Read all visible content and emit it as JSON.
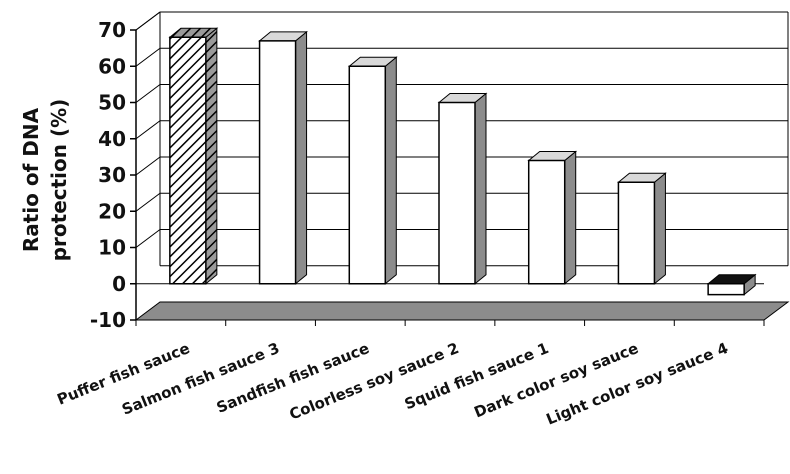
{
  "chart_data": {
    "type": "bar",
    "categories": [
      "Puffer fish sauce",
      "Salmon fish sauce 3",
      "Sandfish fish sauce",
      "Colorless soy sauce 2",
      "Squid fish sauce 1",
      "Dark color soy sauce",
      "Light color soy sauce 4"
    ],
    "values": [
      68,
      67,
      60,
      50,
      34,
      28,
      -3
    ],
    "title": "",
    "xlabel": "",
    "ylabel_lines": [
      "Ratio of DNA",
      "protection (%)"
    ],
    "ylim": [
      -10,
      70
    ],
    "yticks": [
      -10,
      0,
      10,
      20,
      30,
      40,
      50,
      60,
      70
    ],
    "grid": true,
    "style_3d": true,
    "bar_fills": [
      "hatched",
      "white",
      "white",
      "white",
      "white",
      "white",
      "white"
    ],
    "colors": {
      "bar_fill": "#ffffff",
      "bar_side": "#8c8c8c",
      "bar_top": "#d9d9d9",
      "floor": "#8c8c8c",
      "outline": "#000000"
    }
  }
}
